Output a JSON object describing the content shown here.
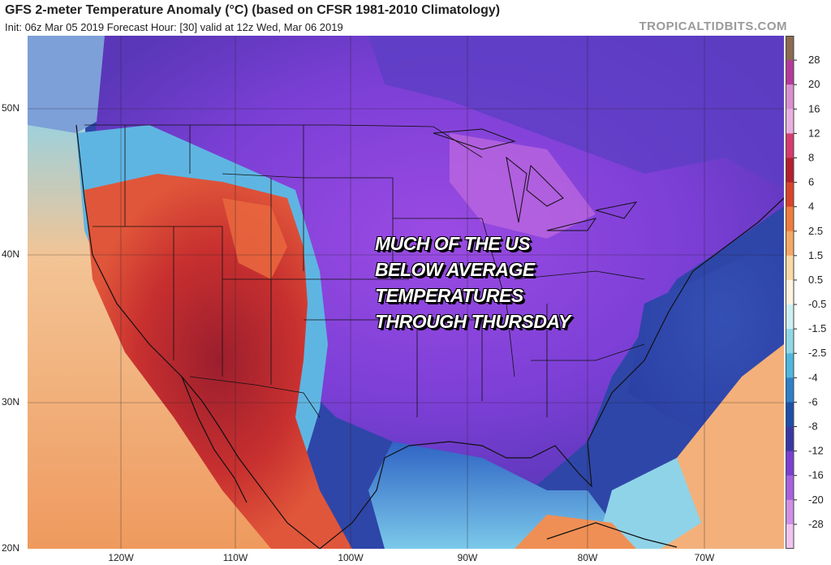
{
  "header": {
    "title": "GFS 2-meter Temperature Anomaly (°C) (based on CFSR 1981-2010 Climatology)",
    "subtitle": "Init: 06z Mar 05 2019   Forecast Hour: [30]   valid at 12z Wed, Mar 06 2019",
    "brand": "TROPICALTIDBITS.COM"
  },
  "map": {
    "lat_labels": [
      "50N",
      "40N",
      "30N",
      "20N"
    ],
    "lon_labels": [
      "120W",
      "110W",
      "100W",
      "90W",
      "80W",
      "70W"
    ],
    "overlay_lines": [
      "MUCH OF THE US",
      "BELOW AVERAGE",
      "TEMPERATURES",
      "THROUGH THURSDAY"
    ]
  },
  "colorbar": {
    "ticks": [
      "28",
      "20",
      "16",
      "12",
      "8",
      "6",
      "4",
      "2.5",
      "1.5",
      "0.5",
      "-0.5",
      "-1.5",
      "-2.5",
      "-4",
      "-6",
      "-8",
      "-12",
      "-16",
      "-20",
      "-28"
    ],
    "colors": [
      "#8a6a50",
      "#b43a9a",
      "#d98fcf",
      "#e8b0e0",
      "#d63b6e",
      "#b31f2a",
      "#d9432a",
      "#ef7b3c",
      "#f5a766",
      "#f9d9a6",
      "#fdf3e0",
      "#cdeff2",
      "#8fd7e6",
      "#4fb6dc",
      "#2d7fc7",
      "#1e4fa8",
      "#3a36a5",
      "#7a3fd0",
      "#a662de",
      "#cf8fe6",
      "#f1c4f0"
    ]
  }
}
